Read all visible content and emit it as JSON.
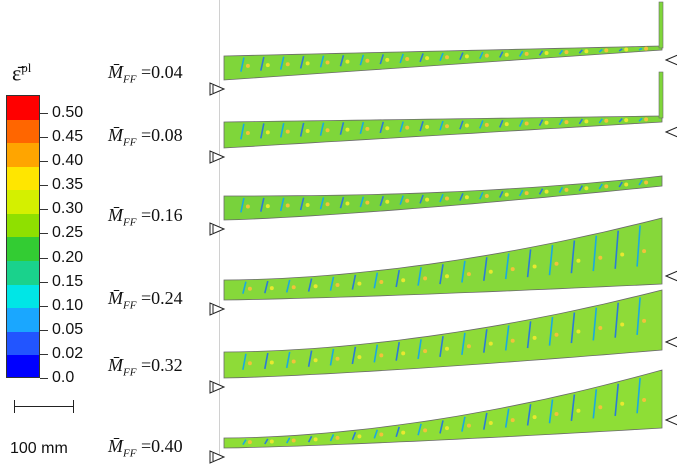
{
  "legend": {
    "title": "ε̄",
    "title_sup": "pl",
    "ticks": [
      "0.50",
      "0.45",
      "0.40",
      "0.35",
      "0.30",
      "0.25",
      "0.20",
      "0.15",
      "0.10",
      "0.05",
      "0.02",
      "0.0"
    ],
    "colors": [
      "#ff0000",
      "#ff6600",
      "#ffa500",
      "#ffe600",
      "#d4f000",
      "#8fe000",
      "#33cc33",
      "#1ad28c",
      "#00e6e6",
      "#1aa7ff",
      "#2255ff",
      "#0000ff"
    ]
  },
  "scale": {
    "label": "100 mm"
  },
  "cases": [
    {
      "label": "0.04",
      "shape": "straight-stem",
      "fill": "#7fd63a"
    },
    {
      "label": "0.08",
      "shape": "straight-stem",
      "fill": "#7fd63a"
    },
    {
      "label": "0.16",
      "shape": "slight-curve",
      "fill": "#78d23c"
    },
    {
      "label": "0.24",
      "shape": "curve",
      "fill": "#86d83a"
    },
    {
      "label": "0.32",
      "shape": "curve",
      "fill": "#8edb38"
    },
    {
      "label": "0.40",
      "shape": "strong-curve",
      "fill": "#8ede36"
    }
  ],
  "case_prefix_symbol": "M̄",
  "case_prefix_sub": "FF"
}
